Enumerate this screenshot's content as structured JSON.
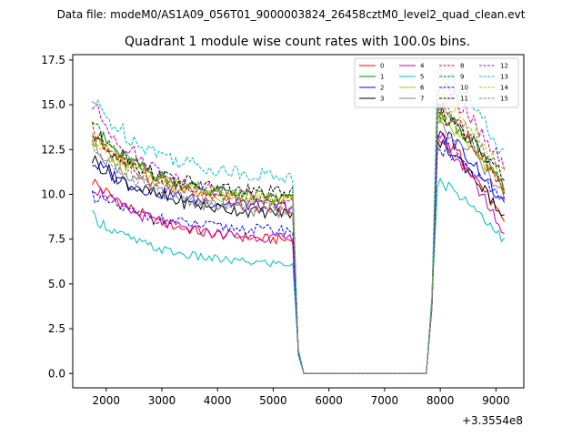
{
  "header": {
    "datafile": "Data file: modeM0/AS1A09_056T01_9000003824_26458cztM0_level2_quad_clean.evt",
    "title": "Quadrant 1 module wise count rates with 100.0s bins."
  },
  "chart_data": {
    "type": "line",
    "title": "Quadrant 1 module wise count rates with 100.0s bins.",
    "xlabel": "",
    "ylabel": "",
    "x_offset_label": "+3.3554e8",
    "xlim": [
      1400,
      9500
    ],
    "ylim": [
      -0.8,
      17.8
    ],
    "x_ticks": [
      2000,
      3000,
      4000,
      5000,
      6000,
      7000,
      8000,
      9000
    ],
    "x_tick_labels": [
      "2000",
      "3000",
      "4000",
      "5000",
      "6000",
      "7000",
      "8000",
      "9000"
    ],
    "y_ticks": [
      0.0,
      2.5,
      5.0,
      7.5,
      10.0,
      12.5,
      15.0,
      17.5
    ],
    "y_tick_labels": [
      "0.0",
      "2.5",
      "5.0",
      "7.5",
      "10.0",
      "12.5",
      "15.0",
      "17.5"
    ],
    "legend_position": "top-right",
    "segments": [
      {
        "x_start": 1750,
        "x_end": 5350
      },
      {
        "x_start": 5350,
        "x_end": 5550,
        "drop": true
      },
      {
        "x_start": 5550,
        "x_end": 7750,
        "zero": true
      },
      {
        "x_start": 7750,
        "x_end": 7950,
        "rise": true
      },
      {
        "x_start": 7950,
        "x_end": 9150
      }
    ],
    "series": [
      {
        "name": "0",
        "color": "#ff0000",
        "dash": "solid",
        "start": 10.8,
        "mid_end": 7.3,
        "peak": 13.2,
        "end": 8.3
      },
      {
        "name": "1",
        "color": "#008000",
        "dash": "solid",
        "start": 13.7,
        "mid_end": 9.6,
        "peak": 14.6,
        "end": 10.3
      },
      {
        "name": "2",
        "color": "#0000ff",
        "dash": "solid",
        "start": 11.8,
        "mid_end": 9.2,
        "peak": 13.5,
        "end": 9.3
      },
      {
        "name": "3",
        "color": "#000000",
        "dash": "solid",
        "start": 12.0,
        "mid_end": 8.8,
        "peak": 12.8,
        "end": 8.6
      },
      {
        "name": "4",
        "color": "#bf00bf",
        "dash": "solid",
        "start": 10.5,
        "mid_end": 7.4,
        "peak": 12.9,
        "end": 7.7
      },
      {
        "name": "5",
        "color": "#00bfbf",
        "dash": "solid",
        "start": 8.8,
        "mid_end": 6.0,
        "peak": 10.7,
        "end": 7.4
      },
      {
        "name": "6",
        "color": "#bfbf00",
        "dash": "solid",
        "start": 13.2,
        "mid_end": 9.5,
        "peak": 14.2,
        "end": 10.2
      },
      {
        "name": "7",
        "color": "#808080",
        "dash": "solid",
        "start": 12.9,
        "mid_end": 8.8,
        "peak": 13.8,
        "end": 9.9
      },
      {
        "name": "8",
        "color": "#ff0000",
        "dash": "dashed",
        "start": 13.6,
        "mid_end": 9.1,
        "peak": 14.9,
        "end": 10.0
      },
      {
        "name": "9",
        "color": "#008000",
        "dash": "dashed",
        "start": 13.8,
        "mid_end": 9.5,
        "peak": 14.6,
        "end": 10.3
      },
      {
        "name": "10",
        "color": "#0000ff",
        "dash": "dashed",
        "start": 10.0,
        "mid_end": 7.9,
        "peak": 12.5,
        "end": 9.5
      },
      {
        "name": "11",
        "color": "#000000",
        "dash": "dashed",
        "start": 13.4,
        "mid_end": 9.9,
        "peak": 14.5,
        "end": 10.9
      },
      {
        "name": "12",
        "color": "#bf00bf",
        "dash": "dashed",
        "start": 15.0,
        "mid_end": 9.4,
        "peak": 16.0,
        "end": 11.4
      },
      {
        "name": "13",
        "color": "#00bfbf",
        "dash": "dashed",
        "start": 15.2,
        "mid_end": 10.8,
        "peak": 16.8,
        "end": 12.1
      },
      {
        "name": "14",
        "color": "#bfbf00",
        "dash": "dashed",
        "start": 13.3,
        "mid_end": 9.6,
        "peak": 15.4,
        "end": 11.1
      },
      {
        "name": "15",
        "color": "#808080",
        "dash": "dashed",
        "start": 12.6,
        "mid_end": 9.0,
        "peak": 15.0,
        "end": 10.8
      }
    ]
  }
}
